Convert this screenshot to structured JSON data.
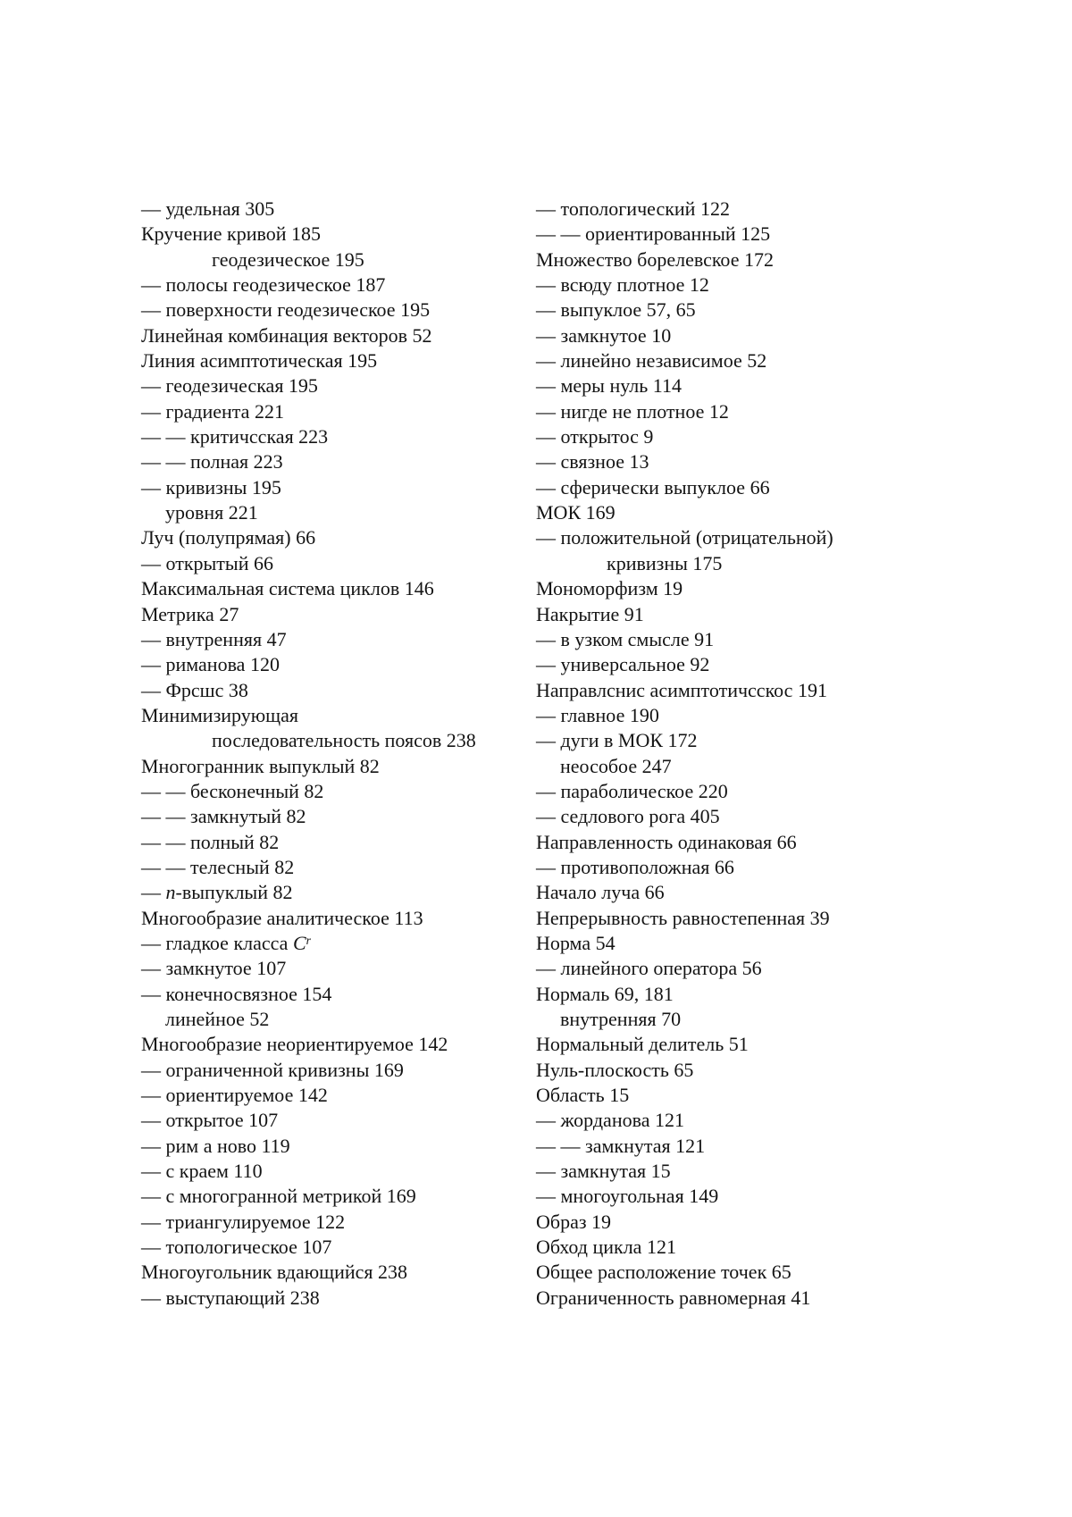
{
  "page": {
    "background_color": "#ffffff",
    "text_color": "#141414",
    "kind": "book-index-scan"
  },
  "index": {
    "columns": [
      {
        "side": "left",
        "lines": [
          {
            "style": "entry",
            "text": "— удельная 305"
          },
          {
            "style": "entry",
            "text": "Кручение кривой 185"
          },
          {
            "style": "cont2",
            "text": "геодезическое 195"
          },
          {
            "style": "entry",
            "text": "— полосы геодезическое 187"
          },
          {
            "style": "entry",
            "text": "— поверхности геодезическое 195"
          },
          {
            "style": "entry",
            "text": "Линейная комбинация векторов 52"
          },
          {
            "style": "entry",
            "text": "Линия асимптотическая 195"
          },
          {
            "style": "entry",
            "text": "— геодезическая 195"
          },
          {
            "style": "entry",
            "text": "— градиента 221"
          },
          {
            "style": "entry",
            "text": "— — критичсская 223"
          },
          {
            "style": "entry",
            "text": "— — полная 223"
          },
          {
            "style": "entry",
            "text": "— кривизны 195"
          },
          {
            "style": "cont1",
            "text": "уровня 221"
          },
          {
            "style": "entry",
            "text": "Луч (полупрямая) 66"
          },
          {
            "style": "entry",
            "text": "— открытый 66"
          },
          {
            "style": "entry",
            "text": "Максимальная система циклов 146"
          },
          {
            "style": "entry",
            "text": "Метрика 27"
          },
          {
            "style": "entry",
            "text": "— внутренняя 47"
          },
          {
            "style": "entry",
            "text": "— риманова 120"
          },
          {
            "style": "entry",
            "text": "— Фрсшс 38"
          },
          {
            "style": "entry",
            "text": "Минимизирующая"
          },
          {
            "style": "cont2",
            "text": "последовательность поясов 238"
          },
          {
            "style": "entry",
            "text": "Многогранник выпуклый 82"
          },
          {
            "style": "entry",
            "text": "— — бесконечный 82"
          },
          {
            "style": "entry",
            "text": "— — замкнутый 82"
          },
          {
            "style": "entry",
            "text": "— — полный 82"
          },
          {
            "style": "entry",
            "text": "— — телесный 82"
          },
          {
            "style": "entry",
            "runs": [
              {
                "text": "— "
              },
              {
                "text": "n",
                "italic": true
              },
              {
                "text": "-выпуклый 82"
              }
            ]
          },
          {
            "style": "entry",
            "text": "Многообразие аналитическое 113"
          },
          {
            "style": "entry",
            "runs": [
              {
                "text": "— гладкое класса "
              },
              {
                "text": "C",
                "italic": true
              },
              {
                "text": "r",
                "italic": true,
                "sup": true
              }
            ]
          },
          {
            "style": "entry",
            "text": "— замкнутое 107"
          },
          {
            "style": "entry",
            "text": "— конечносвязное 154"
          },
          {
            "style": "cont1",
            "text": "линейное 52"
          },
          {
            "style": "entry",
            "text": "Многообразие неориентируемое 142"
          },
          {
            "style": "entry",
            "text": "— ограниченной кривизны 169"
          },
          {
            "style": "entry",
            "text": "— ориентируемое 142"
          },
          {
            "style": "entry",
            "text": "— открытое 107"
          },
          {
            "style": "entry",
            "text": "— рим а ново 119"
          },
          {
            "style": "entry",
            "text": "— с краем 110"
          },
          {
            "style": "entry",
            "text": "— с многогранной метрикой 169"
          },
          {
            "style": "entry",
            "text": "— триангулируемое 122"
          },
          {
            "style": "entry",
            "text": "— топологическое 107"
          },
          {
            "style": "entry",
            "text": "Многоугольник вдающийся 238"
          },
          {
            "style": "entry",
            "text": "— выступающий 238"
          }
        ]
      },
      {
        "side": "right",
        "lines": [
          {
            "style": "entry",
            "text": "— топологический 122"
          },
          {
            "style": "entry",
            "text": "— — ориентированный 125"
          },
          {
            "style": "entry",
            "text": "Множество борелевское 172"
          },
          {
            "style": "entry",
            "text": "— всюду плотное 12"
          },
          {
            "style": "entry",
            "text": "— выпуклое 57, 65"
          },
          {
            "style": "entry",
            "text": "— замкнутое 10"
          },
          {
            "style": "entry",
            "text": "— линейно независимое 52"
          },
          {
            "style": "entry",
            "text": "— меры нуль 114"
          },
          {
            "style": "entry",
            "text": "— нигде не плотное 12"
          },
          {
            "style": "entry",
            "text": "— открытос 9"
          },
          {
            "style": "entry",
            "text": "— связное 13"
          },
          {
            "style": "entry",
            "text": "— сферически выпуклое 66"
          },
          {
            "style": "entry",
            "text": "МОК 169"
          },
          {
            "style": "entry",
            "text": "— положительной (отрицательной)"
          },
          {
            "style": "cont2",
            "text": "кривизны 175"
          },
          {
            "style": "entry",
            "text": "Мономорфизм 19"
          },
          {
            "style": "entry",
            "text": "Накрытие 91"
          },
          {
            "style": "entry",
            "text": "— в узком смысле 91"
          },
          {
            "style": "entry",
            "text": "— универсальное 92"
          },
          {
            "style": "entry",
            "text": "Направлснис асимптотичсскос 191"
          },
          {
            "style": "entry",
            "text": "— главное 190"
          },
          {
            "style": "entry",
            "text": "— дуги в МОК 172"
          },
          {
            "style": "cont1",
            "text": "неособое 247"
          },
          {
            "style": "entry",
            "text": "— параболическое 220"
          },
          {
            "style": "entry",
            "text": "— седлового рога 405"
          },
          {
            "style": "entry",
            "text": "Направленность одинаковая 66"
          },
          {
            "style": "entry",
            "text": "— противоположная 66"
          },
          {
            "style": "entry",
            "text": "Начало луча 66"
          },
          {
            "style": "entry",
            "text": "Непрерывность равностепенная 39"
          },
          {
            "style": "entry",
            "text": "Норма 54"
          },
          {
            "style": "entry",
            "text": "— линейного оператора 56"
          },
          {
            "style": "entry",
            "text": "Нормаль 69, 181"
          },
          {
            "style": "cont1",
            "text": "внутренняя 70"
          },
          {
            "style": "entry",
            "text": "Нормальный делитель 51"
          },
          {
            "style": "entry",
            "text": "Нуль-плоскость 65"
          },
          {
            "style": "entry",
            "text": "Область 15"
          },
          {
            "style": "entry",
            "text": "— жорданова 121"
          },
          {
            "style": "entry",
            "text": "— — замкнутая 121"
          },
          {
            "style": "entry",
            "text": "— замкнутая 15"
          },
          {
            "style": "entry",
            "text": "— многоугольная 149"
          },
          {
            "style": "entry",
            "text": "Образ 19"
          },
          {
            "style": "entry",
            "text": "Обход цикла 121"
          },
          {
            "style": "entry",
            "text": "Общее расположение точек 65"
          },
          {
            "style": "entry",
            "text": "Ограниченность равномерная 41"
          }
        ]
      }
    ]
  }
}
